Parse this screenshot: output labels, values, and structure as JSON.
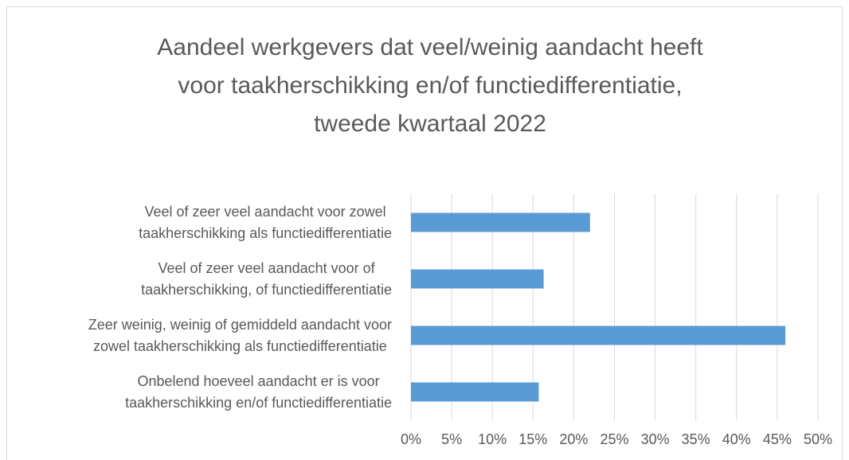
{
  "chart_data": {
    "type": "bar",
    "orientation": "horizontal",
    "title": "Aandeel werkgevers dat veel/weinig aandacht heeft\nvoor taakherschikking en/of functiedifferentiatie,\ntweede kwartaal 2022",
    "categories": [
      "Veel of zeer veel aandacht voor zowel\ntaakherschikking als functiedifferentiatie",
      "Veel of zeer veel aandacht voor of\ntaakherschikking, of functiedifferentiatie",
      "Zeer weinig, weinig of gemiddeld aandacht voor\nzowel taakherschikking als functiedifferentiatie",
      "Onbelend hoeveel aandacht er is voor\ntaakherschikking en/of functiedifferentiatie"
    ],
    "values": [
      22,
      16.3,
      46,
      15.7
    ],
    "color": "#5b9bd5",
    "xlim": [
      0,
      50
    ],
    "xticks": [
      {
        "value": 0,
        "label": "0%"
      },
      {
        "value": 5,
        "label": "5%"
      },
      {
        "value": 10,
        "label": "10%"
      },
      {
        "value": 15,
        "label": "15%"
      },
      {
        "value": 20,
        "label": "20%"
      },
      {
        "value": 25,
        "label": "25%"
      },
      {
        "value": 30,
        "label": "30%"
      },
      {
        "value": 35,
        "label": "35%"
      },
      {
        "value": 40,
        "label": "40%"
      },
      {
        "value": 45,
        "label": "45%"
      },
      {
        "value": 50,
        "label": "50%"
      }
    ],
    "grid": true
  }
}
